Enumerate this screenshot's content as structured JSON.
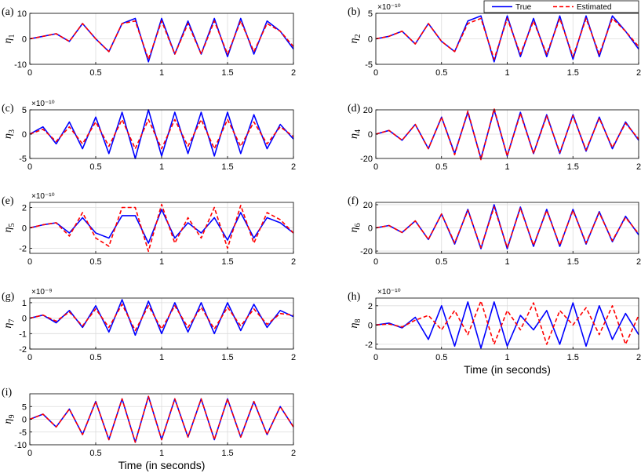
{
  "legend": {
    "placement": "top-right",
    "entries": [
      {
        "name": "True",
        "color": "#0000ff",
        "style": "solid"
      },
      {
        "name": "Estimated",
        "color": "#ff0000",
        "style": "dashed"
      }
    ]
  },
  "xlabel": "Time (in seconds)",
  "colors": {
    "true": "#0000ff",
    "estimated": "#ff0000",
    "grid": "#dcdcdc"
  },
  "chart_data": [
    {
      "type": "line",
      "panel": "(a)",
      "ylabel": "η",
      "sub": "1",
      "exponent": "",
      "xlim": [
        0,
        2
      ],
      "ylim": [
        -10,
        10
      ],
      "yticks": [
        -10,
        0,
        10
      ],
      "xticks": [
        0,
        0.5,
        1,
        1.5,
        2
      ],
      "show_xlabel": false,
      "grid": true,
      "x": [
        0,
        0.1,
        0.2,
        0.3,
        0.4,
        0.5,
        0.6,
        0.7,
        0.8,
        0.9,
        1.0,
        1.1,
        1.2,
        1.3,
        1.4,
        1.5,
        1.6,
        1.7,
        1.8,
        1.9,
        2.0
      ],
      "series": [
        {
          "name": "True",
          "values": [
            0,
            1,
            2,
            -1,
            6,
            0,
            -5,
            6,
            8,
            -9,
            8,
            -6,
            7,
            -6,
            8,
            -7,
            8,
            -6,
            7,
            3,
            -4
          ]
        },
        {
          "name": "Estimated",
          "values": [
            0,
            1,
            2,
            -1,
            6,
            0,
            -5,
            6,
            7,
            -8,
            7,
            -6,
            6,
            -6,
            7,
            -6,
            7,
            -5,
            6,
            3,
            -3
          ]
        }
      ]
    },
    {
      "type": "line",
      "panel": "(b)",
      "ylabel": "η",
      "sub": "2",
      "exponent": "×10⁻¹⁰",
      "xlim": [
        0,
        2
      ],
      "ylim": [
        -5,
        5
      ],
      "yticks": [
        -5,
        0,
        5
      ],
      "xticks": [
        0,
        0.5,
        1,
        1.5,
        2
      ],
      "show_xlabel": false,
      "grid": true,
      "x": [
        0,
        0.1,
        0.2,
        0.3,
        0.4,
        0.5,
        0.6,
        0.7,
        0.8,
        0.9,
        1.0,
        1.1,
        1.2,
        1.3,
        1.4,
        1.5,
        1.6,
        1.7,
        1.8,
        1.9,
        2.0
      ],
      "series": [
        {
          "name": "True",
          "values": [
            0,
            0.5,
            1.5,
            -1,
            3,
            -0.5,
            -2.5,
            3.5,
            4.5,
            -4.5,
            4.5,
            -3.5,
            4,
            -3.5,
            4.5,
            -4,
            4.5,
            -3.5,
            4.5,
            1.5,
            -2
          ]
        },
        {
          "name": "Estimated",
          "values": [
            0,
            0.5,
            1.5,
            -1,
            3,
            -0.5,
            -2.5,
            3,
            4,
            -4,
            4,
            -3,
            3.5,
            -3,
            4,
            -3.5,
            4,
            -3,
            4,
            1.5,
            -1.5
          ]
        }
      ]
    },
    {
      "type": "line",
      "panel": "(c)",
      "ylabel": "η",
      "sub": "3",
      "exponent": "×10⁻¹⁰",
      "xlim": [
        0,
        2
      ],
      "ylim": [
        -5,
        5
      ],
      "yticks": [
        -5,
        0,
        5
      ],
      "xticks": [
        0,
        0.5,
        1,
        1.5,
        2
      ],
      "show_xlabel": false,
      "grid": true,
      "x": [
        0,
        0.1,
        0.2,
        0.3,
        0.4,
        0.5,
        0.6,
        0.7,
        0.8,
        0.9,
        1.0,
        1.1,
        1.2,
        1.3,
        1.4,
        1.5,
        1.6,
        1.7,
        1.8,
        1.9,
        2.0
      ],
      "series": [
        {
          "name": "True",
          "values": [
            0,
            1.5,
            -2,
            2.5,
            -3,
            3.5,
            -4,
            4.5,
            -5,
            5,
            -4.5,
            4.5,
            -4,
            4.5,
            -4.5,
            4.5,
            -4,
            4,
            -3,
            2,
            -1
          ]
        },
        {
          "name": "Estimated",
          "values": [
            0,
            1,
            -1.5,
            1.5,
            -2,
            2.5,
            -2.5,
            3,
            -3,
            3,
            -3,
            3,
            -2.5,
            3,
            -3,
            3,
            -2.5,
            2.5,
            -2,
            1.5,
            -0.5
          ]
        }
      ]
    },
    {
      "type": "line",
      "panel": "(d)",
      "ylabel": "η",
      "sub": "4",
      "exponent": "",
      "xlim": [
        0,
        2
      ],
      "ylim": [
        -20,
        20
      ],
      "yticks": [
        -20,
        0,
        20
      ],
      "xticks": [
        0,
        0.5,
        1,
        1.5,
        2
      ],
      "show_xlabel": false,
      "grid": true,
      "x": [
        0,
        0.1,
        0.2,
        0.3,
        0.4,
        0.5,
        0.6,
        0.7,
        0.8,
        0.9,
        1.0,
        1.1,
        1.2,
        1.3,
        1.4,
        1.5,
        1.6,
        1.7,
        1.8,
        1.9,
        2.0
      ],
      "series": [
        {
          "name": "True",
          "values": [
            0,
            3,
            -5,
            8,
            -12,
            14,
            -16,
            18,
            -20,
            20,
            -18,
            18,
            -16,
            16,
            -16,
            16,
            -14,
            14,
            -12,
            10,
            -5
          ]
        },
        {
          "name": "Estimated",
          "values": [
            0,
            3,
            -5,
            8,
            -12,
            14,
            -17,
            19,
            -21,
            21,
            -18,
            17,
            -16,
            15,
            -15,
            15,
            -13,
            13,
            -11,
            9,
            -4
          ]
        }
      ]
    },
    {
      "type": "line",
      "panel": "(e)",
      "ylabel": "η",
      "sub": "5",
      "exponent": "×10⁻¹⁰",
      "xlim": [
        0,
        2
      ],
      "ylim": [
        -2.5,
        2.5
      ],
      "yticks": [
        -2,
        0,
        2
      ],
      "xticks": [
        0,
        0.5,
        1,
        1.5,
        2
      ],
      "show_xlabel": false,
      "grid": true,
      "x": [
        0,
        0.1,
        0.2,
        0.3,
        0.4,
        0.5,
        0.6,
        0.7,
        0.8,
        0.9,
        1.0,
        1.1,
        1.2,
        1.3,
        1.4,
        1.5,
        1.6,
        1.7,
        1.8,
        1.9,
        2.0
      ],
      "series": [
        {
          "name": "True",
          "values": [
            0,
            0.3,
            0.5,
            -0.5,
            1,
            -0.5,
            -1,
            1.2,
            1.2,
            -1.5,
            1.8,
            -1,
            0.5,
            -0.5,
            1,
            -1.2,
            1.5,
            -1,
            1,
            0.5,
            -0.5
          ]
        },
        {
          "name": "Estimated",
          "values": [
            0,
            0.3,
            0.5,
            -0.8,
            1.5,
            -1,
            -1.8,
            2,
            2,
            -2.3,
            2.3,
            -1.5,
            1,
            -1,
            2,
            -2,
            2.2,
            -1.5,
            1.5,
            0.8,
            -0.5
          ]
        }
      ]
    },
    {
      "type": "line",
      "panel": "(f)",
      "ylabel": "η",
      "sub": "6",
      "exponent": "",
      "xlim": [
        0,
        2
      ],
      "ylim": [
        -22,
        22
      ],
      "yticks": [
        -20,
        0,
        20
      ],
      "xticks": [
        0,
        0.5,
        1,
        1.5,
        2
      ],
      "show_xlabel": false,
      "grid": true,
      "x": [
        0,
        0.1,
        0.2,
        0.3,
        0.4,
        0.5,
        0.6,
        0.7,
        0.8,
        0.9,
        1.0,
        1.1,
        1.2,
        1.3,
        1.4,
        1.5,
        1.6,
        1.7,
        1.8,
        1.9,
        2.0
      ],
      "series": [
        {
          "name": "True",
          "values": [
            0,
            2,
            -4,
            6,
            -10,
            12,
            -14,
            16,
            -18,
            20,
            -18,
            18,
            -16,
            16,
            -16,
            16,
            -14,
            14,
            -12,
            10,
            -6
          ]
        },
        {
          "name": "Estimated",
          "values": [
            0,
            2,
            -4,
            6,
            -10,
            12,
            -13,
            15,
            -17,
            18,
            -17,
            17,
            -15,
            15,
            -15,
            15,
            -13,
            13,
            -11,
            9,
            -5
          ]
        }
      ]
    },
    {
      "type": "line",
      "panel": "(g)",
      "ylabel": "η",
      "sub": "7",
      "exponent": "×10⁻⁹",
      "xlim": [
        0,
        2
      ],
      "ylim": [
        -2,
        1.3
      ],
      "yticks": [
        -2,
        -1,
        0,
        1
      ],
      "xticks": [
        0,
        0.5,
        1,
        1.5,
        2
      ],
      "show_xlabel": false,
      "grid": true,
      "x": [
        0,
        0.1,
        0.2,
        0.3,
        0.4,
        0.5,
        0.6,
        0.7,
        0.8,
        0.9,
        1.0,
        1.1,
        1.2,
        1.3,
        1.4,
        1.5,
        1.6,
        1.7,
        1.8,
        1.9,
        2.0
      ],
      "series": [
        {
          "name": "True",
          "values": [
            0,
            0.2,
            -0.3,
            0.5,
            -0.6,
            0.8,
            -0.9,
            1.2,
            -1.1,
            1.1,
            -1,
            1,
            -0.9,
            1,
            -1,
            1,
            -0.8,
            0.9,
            -0.6,
            0.5,
            0.1
          ]
        },
        {
          "name": "Estimated",
          "values": [
            0,
            0.2,
            -0.2,
            0.4,
            -0.5,
            0.6,
            -0.6,
            0.9,
            -0.8,
            0.8,
            -0.7,
            0.8,
            -0.6,
            0.7,
            -0.7,
            0.7,
            -0.5,
            0.6,
            -0.4,
            0.3,
            0.2
          ]
        }
      ]
    },
    {
      "type": "line",
      "panel": "(h)",
      "ylabel": "η",
      "sub": "8",
      "exponent": "×10⁻¹⁰",
      "xlim": [
        0,
        2
      ],
      "ylim": [
        -2.5,
        2.8
      ],
      "yticks": [
        -2,
        0,
        2
      ],
      "xticks": [
        0,
        0.5,
        1,
        1.5,
        2
      ],
      "show_xlabel": true,
      "grid": true,
      "x": [
        0,
        0.1,
        0.2,
        0.3,
        0.4,
        0.5,
        0.6,
        0.7,
        0.8,
        0.9,
        1.0,
        1.1,
        1.2,
        1.3,
        1.4,
        1.5,
        1.6,
        1.7,
        1.8,
        1.9,
        2.0
      ],
      "series": [
        {
          "name": "True",
          "values": [
            0,
            0.2,
            -0.3,
            0.8,
            -1.5,
            2,
            -2.2,
            2.4,
            -2.4,
            2.4,
            -2.2,
            1,
            -0.5,
            1.5,
            -2,
            2.3,
            -2.2,
            2,
            -1.5,
            1.2,
            -1
          ]
        },
        {
          "name": "Estimated",
          "values": [
            0,
            0.1,
            -0.2,
            0.5,
            1,
            -0.5,
            1.5,
            -1,
            2.5,
            -2,
            1.5,
            -0.5,
            2.3,
            -2,
            1.5,
            0,
            1.8,
            -1,
            2,
            -2,
            1
          ]
        }
      ]
    },
    {
      "type": "line",
      "panel": "(i)",
      "ylabel": "η",
      "sub": "9",
      "exponent": "",
      "xlim": [
        0,
        2
      ],
      "ylim": [
        -10,
        10
      ],
      "yticks": [
        -10,
        -5,
        0,
        5
      ],
      "xticks": [
        0,
        0.5,
        1,
        1.5,
        2
      ],
      "show_xlabel": true,
      "grid": true,
      "x": [
        0,
        0.1,
        0.2,
        0.3,
        0.4,
        0.5,
        0.6,
        0.7,
        0.8,
        0.9,
        1.0,
        1.1,
        1.2,
        1.3,
        1.4,
        1.5,
        1.6,
        1.7,
        1.8,
        1.9,
        2.0
      ],
      "series": [
        {
          "name": "True",
          "values": [
            0,
            2,
            -3,
            4,
            -6,
            7,
            -8,
            8,
            -9,
            9,
            -8,
            8,
            -7,
            8,
            -8,
            8,
            -7,
            7,
            -6,
            5,
            -3
          ]
        },
        {
          "name": "Estimated",
          "values": [
            0,
            2,
            -3,
            4,
            -6,
            7,
            -8,
            8,
            -9,
            9,
            -8,
            8,
            -7,
            8,
            -8,
            8,
            -7,
            7,
            -6,
            5,
            -3
          ]
        }
      ]
    }
  ]
}
